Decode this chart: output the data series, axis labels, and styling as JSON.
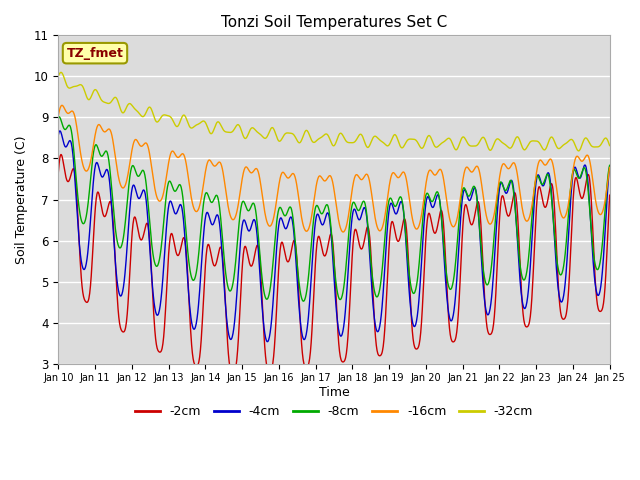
{
  "title": "Tonzi Soil Temperatures Set C",
  "xlabel": "Time",
  "ylabel": "Soil Temperature (C)",
  "ylim": [
    3.0,
    11.0
  ],
  "yticks": [
    3.0,
    4.0,
    5.0,
    6.0,
    7.0,
    8.0,
    9.0,
    10.0,
    11.0
  ],
  "bg_color": "#dcdcdc",
  "legend_labels": [
    "-2cm",
    "-4cm",
    "-8cm",
    "-16cm",
    "-32cm"
  ],
  "legend_colors": [
    "#cc0000",
    "#0000cc",
    "#00aa00",
    "#ff8800",
    "#cccc00"
  ],
  "annotation_text": "TZ_fmet",
  "annotation_bg": "#ffffaa",
  "annotation_fg": "#880000",
  "n_days": 15,
  "start_day": 10
}
